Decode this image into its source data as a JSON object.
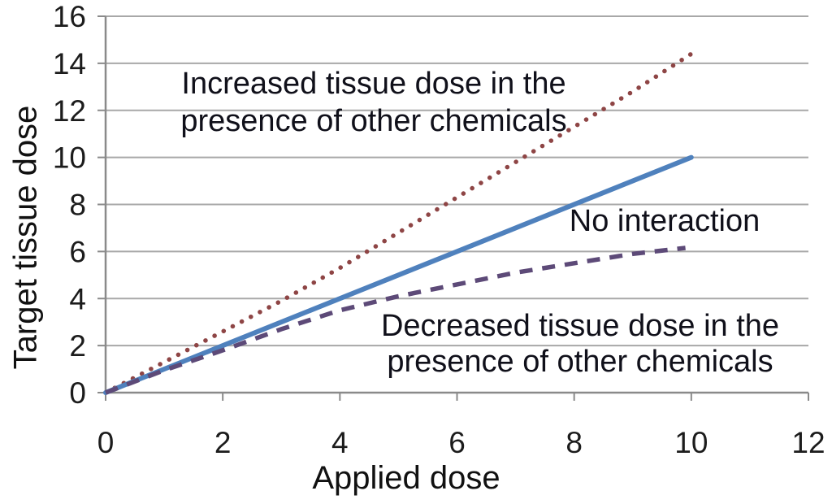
{
  "chart_data": {
    "type": "line",
    "title": "",
    "xlabel": "Applied dose",
    "ylabel": "Target tissue dose",
    "xlim": [
      0,
      12
    ],
    "ylim": [
      0,
      16
    ],
    "xticks": [
      0,
      2,
      4,
      6,
      8,
      10,
      12
    ],
    "yticks": [
      0,
      2,
      4,
      6,
      8,
      10,
      12,
      14,
      16
    ],
    "grid": "horizontal-gridlines",
    "legend": "none (inline text annotations)",
    "colors": {
      "grid": "#a8a8a8",
      "axis": "#8a8a8a",
      "tick_text": "#1c1c1c",
      "increased": "#8e4545",
      "no_interaction": "#4f81bd",
      "decreased": "#5d4a78"
    },
    "series": [
      {
        "name": "Increased tissue dose in the presence of other chemicals",
        "style": "dotted",
        "color": "#8e4545",
        "x": [
          0,
          1,
          2,
          3,
          4,
          5,
          6,
          7,
          8,
          9,
          10
        ],
        "y": [
          0,
          1.3,
          2.6,
          3.9,
          5.3,
          6.8,
          8.3,
          9.8,
          11.3,
          12.8,
          14.4
        ]
      },
      {
        "name": "No interaction",
        "style": "solid",
        "color": "#4f81bd",
        "x": [
          0,
          10
        ],
        "y": [
          0,
          10
        ]
      },
      {
        "name": "Decreased tissue dose in the presence of other chemicals",
        "style": "dashed",
        "color": "#5d4a78",
        "x": [
          0,
          1,
          2,
          3,
          4,
          5,
          6,
          7,
          8,
          9,
          9.9
        ],
        "y": [
          0,
          0.95,
          1.8,
          2.7,
          3.5,
          4.1,
          4.6,
          5.1,
          5.5,
          5.9,
          6.15
        ]
      }
    ],
    "annotations": [
      {
        "line1": "Increased tissue dose in the",
        "line2": "presence of other chemicals"
      },
      {
        "line1": "No interaction",
        "line2": ""
      },
      {
        "line1": "Decreased tissue dose in the",
        "line2": "presence of other chemicals"
      }
    ]
  },
  "axes": {
    "xlabel": "Applied dose",
    "ylabel": "Target tissue dose"
  }
}
